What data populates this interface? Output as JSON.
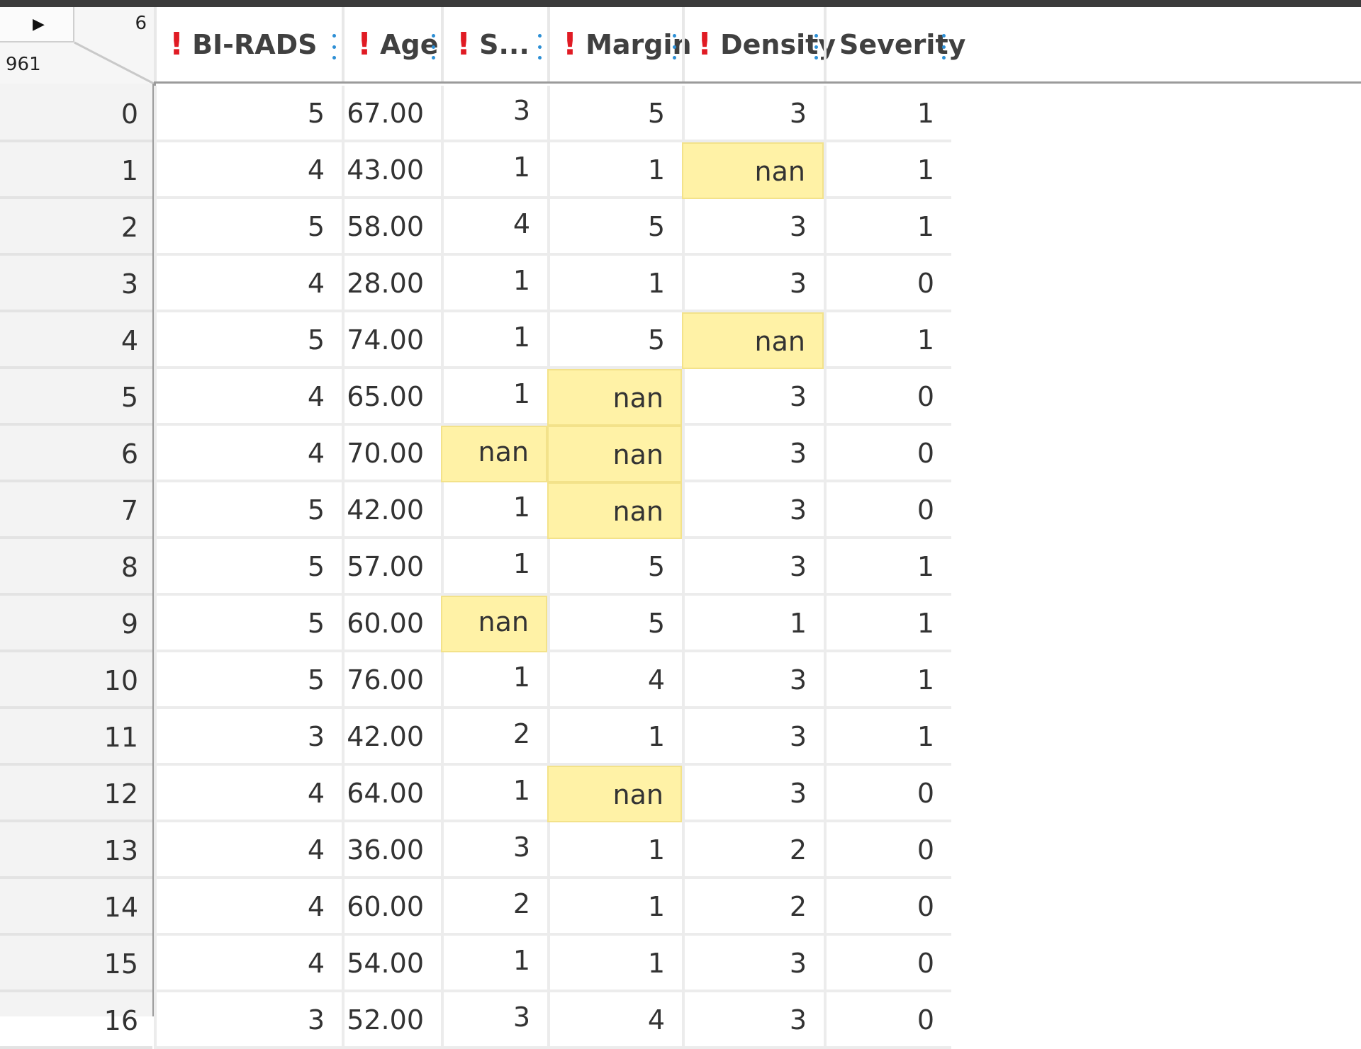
{
  "grid": {
    "column_count": "6",
    "row_count": "961",
    "columns": [
      {
        "label": "BI-RADS",
        "warning": true
      },
      {
        "label": "Age",
        "warning": true
      },
      {
        "label": "S...",
        "warning": true
      },
      {
        "label": "Margin",
        "warning": true
      },
      {
        "label": "Density",
        "warning": true
      },
      {
        "label": "Severity",
        "warning": false
      }
    ],
    "rows": [
      {
        "index": "0",
        "cells": [
          "5",
          "67.00",
          "3",
          "5",
          "3",
          "1"
        ]
      },
      {
        "index": "1",
        "cells": [
          "4",
          "43.00",
          "1",
          "1",
          "nan",
          "1"
        ]
      },
      {
        "index": "2",
        "cells": [
          "5",
          "58.00",
          "4",
          "5",
          "3",
          "1"
        ]
      },
      {
        "index": "3",
        "cells": [
          "4",
          "28.00",
          "1",
          "1",
          "3",
          "0"
        ]
      },
      {
        "index": "4",
        "cells": [
          "5",
          "74.00",
          "1",
          "5",
          "nan",
          "1"
        ]
      },
      {
        "index": "5",
        "cells": [
          "4",
          "65.00",
          "1",
          "nan",
          "3",
          "0"
        ]
      },
      {
        "index": "6",
        "cells": [
          "4",
          "70.00",
          "nan",
          "nan",
          "3",
          "0"
        ]
      },
      {
        "index": "7",
        "cells": [
          "5",
          "42.00",
          "1",
          "nan",
          "3",
          "0"
        ]
      },
      {
        "index": "8",
        "cells": [
          "5",
          "57.00",
          "1",
          "5",
          "3",
          "1"
        ]
      },
      {
        "index": "9",
        "cells": [
          "5",
          "60.00",
          "nan",
          "5",
          "1",
          "1"
        ]
      },
      {
        "index": "10",
        "cells": [
          "5",
          "76.00",
          "1",
          "4",
          "3",
          "1"
        ]
      },
      {
        "index": "11",
        "cells": [
          "3",
          "42.00",
          "2",
          "1",
          "3",
          "1"
        ]
      },
      {
        "index": "12",
        "cells": [
          "4",
          "64.00",
          "1",
          "nan",
          "3",
          "0"
        ]
      },
      {
        "index": "13",
        "cells": [
          "4",
          "36.00",
          "3",
          "1",
          "2",
          "0"
        ]
      },
      {
        "index": "14",
        "cells": [
          "4",
          "60.00",
          "2",
          "1",
          "2",
          "0"
        ]
      },
      {
        "index": "15",
        "cells": [
          "4",
          "54.00",
          "1",
          "1",
          "3",
          "0"
        ]
      },
      {
        "index": "16",
        "cells": [
          "3",
          "52.00",
          "3",
          "4",
          "3",
          "0"
        ]
      }
    ],
    "missing_value_highlight": "#fff2a6",
    "warning_color": "#e01b24",
    "menu_dots_color": "#2d8fd5"
  },
  "icons": {
    "corner_toggle": "play-triangle-icon",
    "warning": "exclamation-icon",
    "column_menu": "vertical-dots-icon"
  }
}
